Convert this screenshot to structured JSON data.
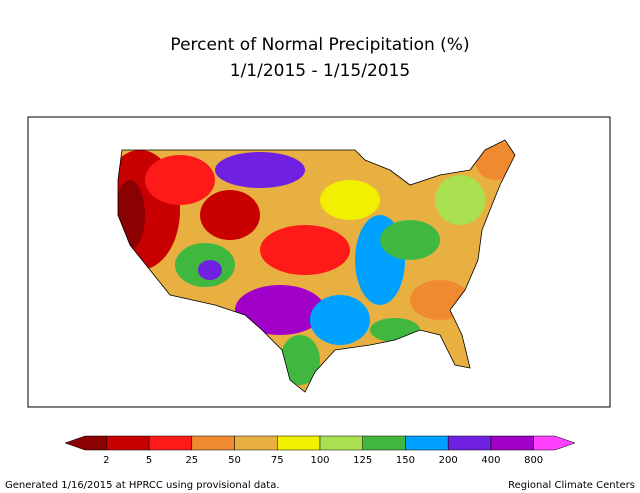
{
  "title": "Percent of Normal Precipitation (%)",
  "subtitle": "1/1/2015 - 1/15/2015",
  "legend": {
    "ticks": [
      2,
      5,
      25,
      50,
      75,
      100,
      125,
      150,
      200,
      400,
      800
    ],
    "colors": [
      "#8b0000",
      "#c80000",
      "#ff1a1a",
      "#f08a30",
      "#e8b040",
      "#f0f000",
      "#a8e050",
      "#40b840",
      "#00a0ff",
      "#7020e0",
      "#a000c8",
      "#ff40ff"
    ]
  },
  "footer": {
    "left": "Generated 1/16/2015 at HPRCC using provisional data.",
    "right": "Regional Climate Centers"
  }
}
